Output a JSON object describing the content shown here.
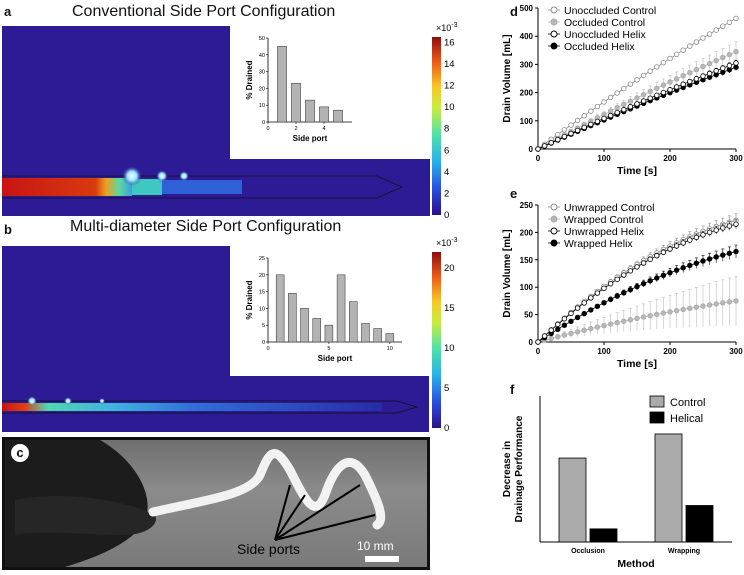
{
  "panels": {
    "a": {
      "letter": "a",
      "title": "Conventional Side Port Configuration",
      "colorbar": {
        "exp": "×10",
        "exp_power": "-3",
        "ticks": [
          "16",
          "14",
          "12",
          "10",
          "8",
          "6",
          "4",
          "2",
          "0"
        ],
        "max": 16.5
      }
    },
    "b": {
      "letter": "b",
      "title": "Multi-diameter Side Port Configuration",
      "colorbar": {
        "exp": "×10",
        "exp_power": "-3",
        "ticks": [
          "20",
          "15",
          "10",
          "5",
          "0"
        ],
        "max": 22
      }
    },
    "c": {
      "letter": "c",
      "label": "Side ports",
      "scale": "10 mm"
    },
    "d": {
      "letter": "d"
    },
    "e": {
      "letter": "e"
    },
    "f": {
      "letter": "f"
    }
  },
  "chart_data": [
    {
      "id": "a-inset",
      "type": "bar",
      "title": "",
      "xlabel": "Side port",
      "ylabel": "% Drained",
      "x": [
        1,
        2,
        3,
        4,
        5
      ],
      "values": [
        45,
        23,
        13,
        9,
        7
      ],
      "xlim": [
        0,
        6
      ],
      "ylim": [
        0,
        50
      ],
      "xticks": [
        "0",
        "2",
        "4"
      ],
      "xtick_values": [
        0,
        2,
        4
      ],
      "yticks": [
        "0",
        "10",
        "20",
        "30",
        "40",
        "50"
      ],
      "ytick_values": [
        0,
        10,
        20,
        30,
        40,
        50
      ]
    },
    {
      "id": "b-inset",
      "type": "bar",
      "title": "",
      "xlabel": "Side port",
      "ylabel": "% Drained",
      "x": [
        1,
        2,
        3,
        4,
        5,
        6,
        7,
        8,
        9,
        10
      ],
      "values": [
        20,
        14.5,
        10,
        7,
        5,
        20,
        12,
        5.5,
        4,
        2.5
      ],
      "xlim": [
        0,
        11
      ],
      "ylim": [
        0,
        25
      ],
      "xticks": [
        "0",
        "5",
        "10"
      ],
      "xtick_values": [
        0,
        5,
        10
      ],
      "yticks": [
        "0",
        "5",
        "10",
        "15",
        "20",
        "25"
      ],
      "ytick_values": [
        0,
        5,
        10,
        15,
        20,
        25
      ]
    },
    {
      "id": "d",
      "type": "line",
      "xlabel": "Time [s]",
      "ylabel": "Drain Volume [mL]",
      "xlim": [
        0,
        300
      ],
      "ylim": [
        0,
        500
      ],
      "xticks": [
        "0",
        "100",
        "200",
        "300"
      ],
      "xtick_values": [
        0,
        100,
        200,
        300
      ],
      "yticks": [
        "0",
        "100",
        "200",
        "300",
        "400",
        "500"
      ],
      "ytick_values": [
        0,
        100,
        200,
        300,
        400,
        500
      ],
      "x": [
        0,
        10,
        20,
        30,
        40,
        50,
        60,
        70,
        80,
        90,
        100,
        110,
        120,
        130,
        140,
        150,
        160,
        170,
        180,
        190,
        200,
        210,
        220,
        230,
        240,
        250,
        260,
        270,
        280,
        290,
        300
      ],
      "series": [
        {
          "name": "Unoccluded Control",
          "style": "open-gray",
          "final": 463,
          "curve": 0.12,
          "err": 5
        },
        {
          "name": "Occluded Control",
          "style": "filled-gray",
          "final": 345,
          "curve": 0.1,
          "err": 35
        },
        {
          "name": "Unoccluded Helix",
          "style": "open-black",
          "final": 305,
          "curve": 0.1,
          "err": 10
        },
        {
          "name": "Occluded Helix",
          "style": "filled-black",
          "final": 290,
          "curve": 0.1,
          "err": 12
        }
      ]
    },
    {
      "id": "e",
      "type": "line",
      "xlabel": "Time [s]",
      "ylabel": "Drain Volume [mL]",
      "xlim": [
        0,
        300
      ],
      "ylim": [
        0,
        250
      ],
      "xticks": [
        "0",
        "100",
        "200",
        "300"
      ],
      "xtick_values": [
        0,
        100,
        200,
        300
      ],
      "yticks": [
        "0",
        "50",
        "100",
        "150",
        "200",
        "250"
      ],
      "ytick_values": [
        0,
        50,
        100,
        150,
        200,
        250
      ],
      "x": [
        0,
        10,
        20,
        30,
        40,
        50,
        60,
        70,
        80,
        90,
        100,
        110,
        120,
        130,
        140,
        150,
        160,
        170,
        180,
        190,
        200,
        210,
        220,
        230,
        240,
        250,
        260,
        270,
        280,
        290,
        300
      ],
      "series": [
        {
          "name": "Unwrapped Control",
          "style": "open-gray",
          "final": 222,
          "curve": 0.55,
          "err": 12
        },
        {
          "name": "Wrapped Control",
          "style": "filled-gray",
          "final": 75,
          "curve": 0.3,
          "err": 45
        },
        {
          "name": "Unwrapped Helix",
          "style": "open-black",
          "final": 215,
          "curve": 0.55,
          "err": 8
        },
        {
          "name": "Wrapped Helix",
          "style": "filled-black",
          "final": 165,
          "curve": 0.45,
          "err": 12
        }
      ]
    },
    {
      "id": "f",
      "type": "bar",
      "title": "",
      "xlabel": "Method",
      "ylabel": "Decrease in Drainage Performance",
      "categories": [
        "Occlusion",
        "Wrapping"
      ],
      "ylim": [
        0,
        200
      ],
      "series": [
        {
          "name": "Control",
          "values": [
            115,
            148
          ],
          "color": "#aaaaaa"
        },
        {
          "name": "Helical",
          "values": [
            18,
            50
          ],
          "color": "#000000"
        }
      ]
    }
  ]
}
